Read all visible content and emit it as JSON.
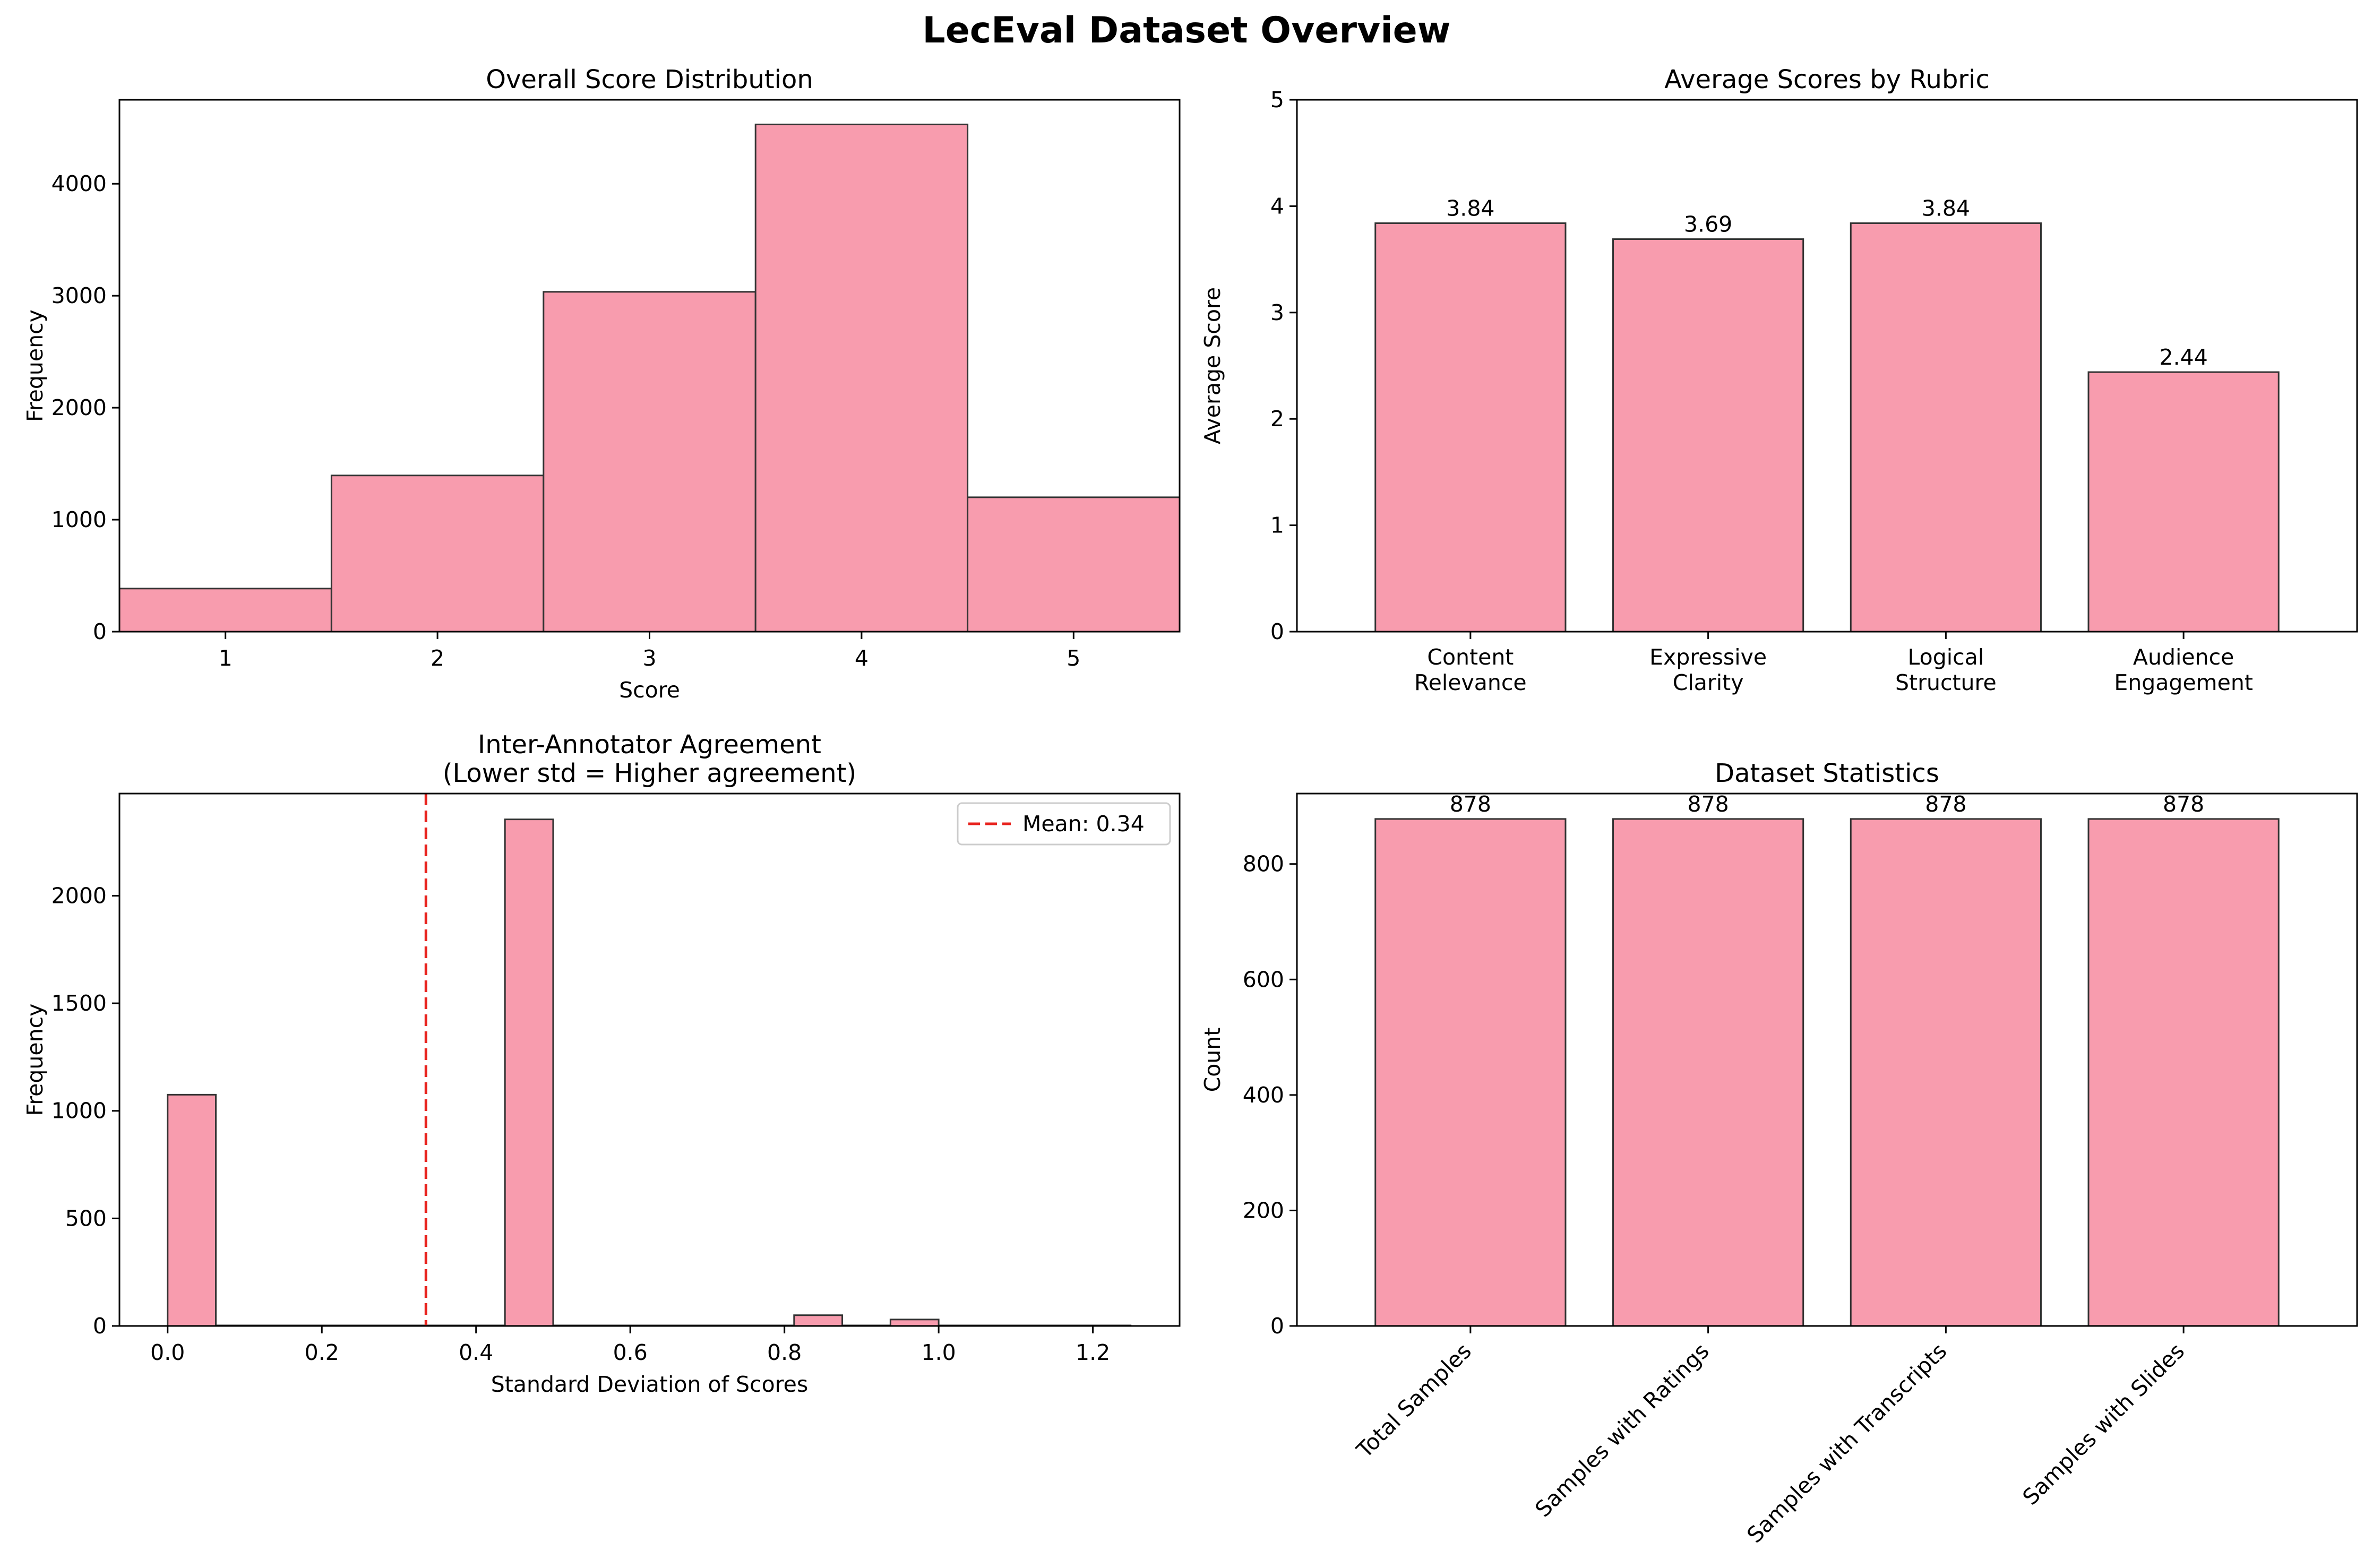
{
  "suptitle": "LecEval Dataset Overview",
  "colors": {
    "bar_fill": "#f89cae",
    "bar_edge": "#333333",
    "mean_line": "#e8231e",
    "axis": "#000000"
  },
  "chart_data": [
    {
      "type": "bar",
      "title": "Overall Score Distribution",
      "xlabel": "Score",
      "ylabel": "Frequency",
      "categories": [
        "1",
        "2",
        "3",
        "4",
        "5"
      ],
      "values": [
        385,
        1395,
        3035,
        4530,
        1200
      ],
      "xlim": [
        0.5,
        5.5
      ],
      "ylim": [
        0,
        4750
      ],
      "yticks": [
        0,
        1000,
        2000,
        3000,
        4000
      ],
      "grid": false
    },
    {
      "type": "bar",
      "title": "Average Scores by Rubric",
      "xlabel": "",
      "ylabel": "Average Score",
      "categories": [
        "Content\nRelevance",
        "Expressive\nClarity",
        "Logical\nStructure",
        "Audience\nEngagement"
      ],
      "values": [
        3.84,
        3.69,
        3.84,
        2.44
      ],
      "data_labels": [
        "3.84",
        "3.69",
        "3.84",
        "2.44"
      ],
      "ylim": [
        0,
        5
      ],
      "yticks": [
        0,
        1,
        2,
        3,
        4,
        5
      ],
      "grid": false
    },
    {
      "type": "bar",
      "title": "Inter-Annotator Agreement\n(Lower std = Higher agreement)",
      "xlabel": "Standard Deviation of Scores",
      "ylabel": "Frequency",
      "bins": [
        {
          "x0": 0.0,
          "x1": 0.0625,
          "count": 1075
        },
        {
          "x0": 0.4375,
          "x1": 0.5,
          "count": 2355
        },
        {
          "x0": 0.8125,
          "x1": 0.875,
          "count": 50
        },
        {
          "x0": 0.9375,
          "x1": 1.0,
          "count": 30
        }
      ],
      "baseline_range": [
        0.0,
        1.25
      ],
      "mean": 0.335,
      "legend": [
        {
          "label": "Mean: 0.34",
          "style": "dashed",
          "color": "#e8231e"
        }
      ],
      "legend_position": "top-right",
      "xlim": [
        -0.0625,
        1.3125
      ],
      "ylim": [
        0,
        2475
      ],
      "xticks": [
        "0.0",
        "0.2",
        "0.4",
        "0.6",
        "0.8",
        "1.0",
        "1.2"
      ],
      "yticks": [
        0,
        500,
        1000,
        1500,
        2000
      ],
      "grid": false
    },
    {
      "type": "bar",
      "title": "Dataset Statistics",
      "xlabel": "",
      "ylabel": "Count",
      "categories": [
        "Total Samples",
        "Samples with Ratings",
        "Samples with Transcripts",
        "Samples with Slides"
      ],
      "values": [
        878,
        878,
        878,
        878
      ],
      "data_labels": [
        "878",
        "878",
        "878",
        "878"
      ],
      "ylim": [
        0,
        922
      ],
      "yticks": [
        0,
        200,
        400,
        600,
        800
      ],
      "xtick_rotation": 45,
      "grid": false
    }
  ]
}
